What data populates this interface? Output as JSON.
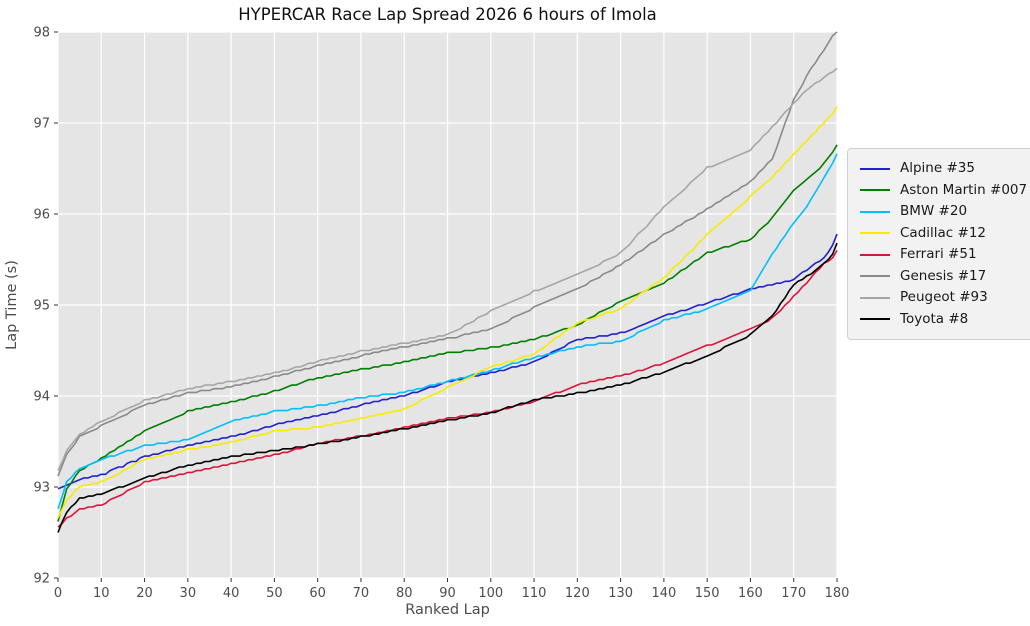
{
  "title": "HYPERCAR Race Lap Spread 2026 6 hours of Imola",
  "colors": {
    "figure_bg": "#FFFFFF",
    "plot_bg": "#E5E5E5",
    "grid": "#FFFFFF",
    "tick_mark": "#333333",
    "tick_label": "#4D4D4D",
    "axis_label": "#4D4D4D",
    "title_text": "#111111",
    "legend_bg": "#F2F2F2",
    "legend_border": "#CFCFCF"
  },
  "chart_data": {
    "type": "line",
    "title": "HYPERCAR Race Lap Spread 2026 6 hours of Imola",
    "xlabel": "Ranked Lap",
    "ylabel": "Lap Time (s)",
    "xlim": [
      0,
      180
    ],
    "ylim": [
      92,
      98
    ],
    "x_ticks": [
      0,
      10,
      20,
      30,
      40,
      50,
      60,
      70,
      80,
      90,
      100,
      110,
      120,
      130,
      140,
      150,
      160,
      170,
      180
    ],
    "y_ticks": [
      92,
      93,
      94,
      95,
      96,
      97,
      98
    ],
    "grid": true,
    "legend_position": "outside-right",
    "x": [
      0,
      2,
      5,
      10,
      20,
      30,
      40,
      50,
      60,
      70,
      80,
      90,
      100,
      110,
      120,
      130,
      140,
      150,
      160,
      165,
      170,
      174,
      177,
      179,
      180
    ],
    "series": [
      {
        "name": "Alpine #35",
        "color": "#2222CC",
        "values": [
          92.97,
          93.02,
          93.08,
          93.13,
          93.33,
          93.46,
          93.55,
          93.68,
          93.78,
          93.9,
          94.0,
          94.15,
          94.25,
          94.37,
          94.62,
          94.69,
          94.88,
          95.02,
          95.17,
          95.22,
          95.28,
          95.42,
          95.52,
          95.65,
          95.78
        ]
      },
      {
        "name": "Aston Martin #007",
        "color": "#008000",
        "values": [
          92.62,
          92.98,
          93.18,
          93.31,
          93.62,
          93.83,
          93.93,
          94.05,
          94.2,
          94.29,
          94.37,
          94.47,
          94.53,
          94.62,
          94.78,
          95.04,
          95.24,
          95.57,
          95.72,
          95.95,
          96.25,
          96.42,
          96.55,
          96.68,
          96.75
        ]
      },
      {
        "name": "BMW #20",
        "color": "#00BFFF",
        "values": [
          92.75,
          93.05,
          93.2,
          93.3,
          93.45,
          93.52,
          93.72,
          93.83,
          93.89,
          93.98,
          94.04,
          94.16,
          94.28,
          94.42,
          94.54,
          94.6,
          94.83,
          94.95,
          95.15,
          95.55,
          95.9,
          96.15,
          96.4,
          96.55,
          96.65
        ]
      },
      {
        "name": "Cadillac #12",
        "color": "#F7EB00",
        "values": [
          92.65,
          92.85,
          93.0,
          93.05,
          93.3,
          93.41,
          93.49,
          93.61,
          93.66,
          93.75,
          93.86,
          94.09,
          94.32,
          94.46,
          94.8,
          94.96,
          95.3,
          95.77,
          96.19,
          96.4,
          96.65,
          96.85,
          97.0,
          97.1,
          97.17
        ]
      },
      {
        "name": "Ferrari #51",
        "color": "#DC143C",
        "values": [
          92.55,
          92.65,
          92.76,
          92.8,
          93.05,
          93.15,
          93.26,
          93.35,
          93.48,
          93.56,
          93.65,
          93.75,
          93.82,
          93.94,
          94.12,
          94.22,
          94.36,
          94.55,
          94.73,
          94.85,
          95.09,
          95.3,
          95.45,
          95.52,
          95.6
        ]
      },
      {
        "name": "Genesis #17",
        "color": "#8A8A8A",
        "values": [
          93.12,
          93.35,
          93.55,
          93.67,
          93.9,
          94.03,
          94.1,
          94.21,
          94.33,
          94.44,
          94.54,
          94.63,
          94.73,
          94.97,
          95.17,
          95.44,
          95.77,
          96.05,
          96.36,
          96.6,
          97.25,
          97.6,
          97.8,
          97.95,
          98.0
        ]
      },
      {
        "name": "Peugeot #93",
        "color": "#A6A6A6",
        "values": [
          93.17,
          93.4,
          93.58,
          93.72,
          93.95,
          94.08,
          94.16,
          94.25,
          94.38,
          94.49,
          94.58,
          94.67,
          94.93,
          95.15,
          95.33,
          95.57,
          96.07,
          96.51,
          96.7,
          96.95,
          97.22,
          97.4,
          97.5,
          97.56,
          97.6
        ]
      },
      {
        "name": "Toyota #8",
        "color": "#000000",
        "values": [
          92.5,
          92.72,
          92.88,
          92.92,
          93.1,
          93.24,
          93.33,
          93.4,
          93.47,
          93.55,
          93.64,
          93.73,
          93.81,
          93.96,
          94.03,
          94.12,
          94.26,
          94.44,
          94.67,
          94.87,
          95.22,
          95.34,
          95.45,
          95.55,
          95.68
        ]
      }
    ]
  }
}
